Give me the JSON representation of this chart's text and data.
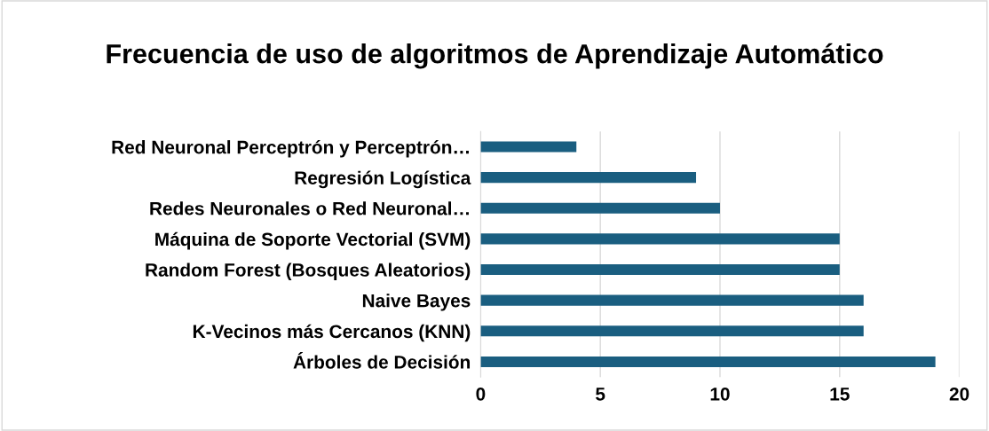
{
  "chart_data": {
    "type": "bar",
    "orientation": "horizontal",
    "title": "Frecuencia de uso de algoritmos de Aprendizaje Automático",
    "categories": [
      "Red Neuronal Perceptrón y Perceptrón…",
      "Regresión Logística",
      "Redes Neuronales o Red Neuronal…",
      "Máquina de Soporte Vectorial (SVM)",
      "Random Forest (Bosques Aleatorios)",
      "Naive Bayes",
      "K-Vecinos más Cercanos (KNN)",
      "Árboles de Decisión"
    ],
    "values": [
      4,
      9,
      10,
      15,
      15,
      16,
      16,
      19
    ],
    "color": "#1a5e80",
    "xlim": [
      0,
      20
    ],
    "xticks": [
      0,
      5,
      10,
      15,
      20
    ],
    "grid": "x",
    "legend": false
  }
}
